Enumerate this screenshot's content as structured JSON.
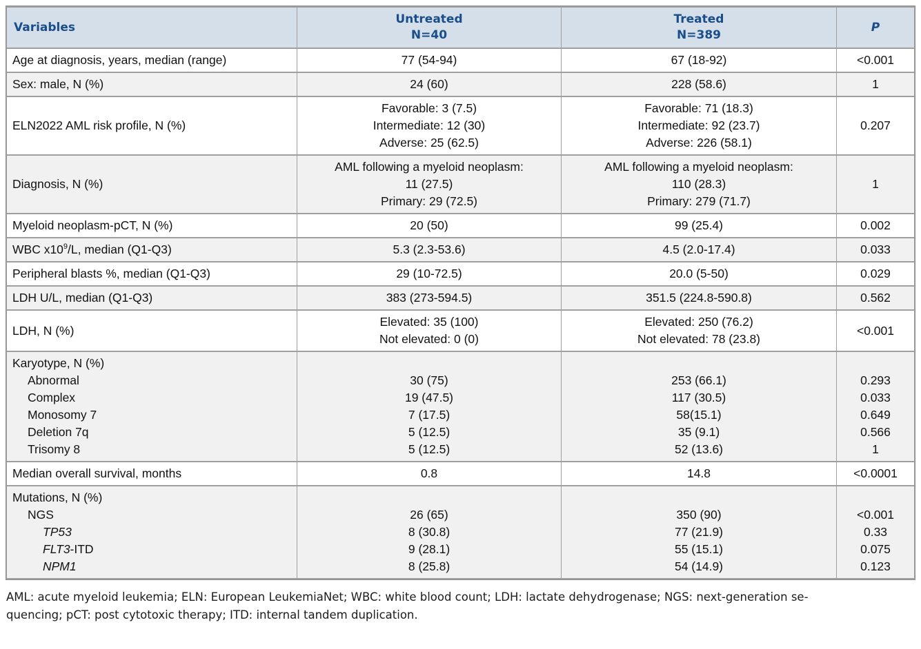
{
  "colors": {
    "header_bg": "#d4dfe9",
    "header_text": "#1a4e8a",
    "row_alt_bg": "#f1f1f1",
    "grid_line": "#9f9f9f"
  },
  "table": {
    "columns": [
      {
        "label": "Variables"
      },
      {
        "label": "Untreated",
        "sublabel": "N=40"
      },
      {
        "label": "Treated",
        "sublabel": "N=389"
      },
      {
        "label": "P"
      }
    ],
    "rows": [
      {
        "variable": [
          "Age at diagnosis, years, median (range)"
        ],
        "untreated": [
          "77 (54-94)"
        ],
        "treated": [
          "67 (18-92)"
        ],
        "p": [
          "<0.001"
        ]
      },
      {
        "variable": [
          "Sex: male, N (%)"
        ],
        "untreated": [
          "24 (60)"
        ],
        "treated": [
          "228 (58.6)"
        ],
        "p": [
          "1"
        ]
      },
      {
        "variable": [
          "ELN2022 AML risk profile, N (%)"
        ],
        "untreated": [
          "Favorable: 3 (7.5)",
          "Intermediate: 12 (30)",
          "Adverse: 25 (62.5)"
        ],
        "treated": [
          "Favorable: 71 (18.3)",
          "Intermediate: 92 (23.7)",
          "Adverse: 226 (58.1)"
        ],
        "p": [
          "0.207"
        ]
      },
      {
        "variable": [
          "Diagnosis, N (%)"
        ],
        "untreated": [
          "AML following a myeloid neoplasm:",
          "11 (27.5)",
          "Primary: 29 (72.5)"
        ],
        "treated": [
          "AML following a myeloid neoplasm:",
          "110 (28.3)",
          "Primary: 279 (71.7)"
        ],
        "p": [
          "1"
        ]
      },
      {
        "variable": [
          "Myeloid neoplasm-pCT, N (%)"
        ],
        "untreated": [
          "20 (50)"
        ],
        "treated": [
          "99 (25.4)"
        ],
        "p": [
          "0.002"
        ]
      },
      {
        "variable": [
          {
            "pre": "WBC x10",
            "sup": "9",
            "post": "/L, median (Q1-Q3)"
          }
        ],
        "untreated": [
          "5.3 (2.3-53.6)"
        ],
        "treated": [
          "4.5 (2.0-17.4)"
        ],
        "p": [
          "0.033"
        ]
      },
      {
        "variable": [
          "Peripheral blasts %, median (Q1-Q3)"
        ],
        "untreated": [
          "29 (10-72.5)"
        ],
        "treated": [
          "20.0 (5-50)"
        ],
        "p": [
          "0.029"
        ]
      },
      {
        "variable": [
          "LDH U/L, median (Q1-Q3)"
        ],
        "untreated": [
          "383 (273-594.5)"
        ],
        "treated": [
          "351.5 (224.8-590.8)"
        ],
        "p": [
          "0.562"
        ]
      },
      {
        "variable": [
          "LDH, N (%)"
        ],
        "untreated": [
          "Elevated: 35 (100)",
          "Not elevated: 0 (0)"
        ],
        "treated": [
          "Elevated: 250 (76.2)",
          "Not elevated: 78 (23.8)"
        ],
        "p": [
          "<0.001"
        ]
      },
      {
        "variable": [
          "Karyotype, N (%)",
          {
            "text": "Abnormal",
            "indent": 1
          },
          {
            "text": "Complex",
            "indent": 1
          },
          {
            "text": "Monosomy 7",
            "indent": 1
          },
          {
            "text": "Deletion 7q",
            "indent": 1
          },
          {
            "text": "Trisomy 8",
            "indent": 1
          }
        ],
        "untreated": [
          "",
          "30 (75)",
          "19 (47.5)",
          "7 (17.5)",
          "5 (12.5)",
          "5 (12.5)"
        ],
        "treated": [
          "",
          "253 (66.1)",
          "117 (30.5)",
          "58(15.1)",
          "35 (9.1)",
          "52 (13.6)"
        ],
        "p": [
          "",
          "0.293",
          "0.033",
          "0.649",
          "0.566",
          "1"
        ]
      },
      {
        "variable": [
          "Median overall survival, months"
        ],
        "untreated": [
          "0.8"
        ],
        "treated": [
          "14.8"
        ],
        "p": [
          "<0.0001"
        ]
      },
      {
        "variable": [
          "Mutations, N (%)",
          {
            "text": "NGS",
            "indent": 1
          },
          {
            "em": "TP53",
            "indent": 2
          },
          {
            "em": "FLT3",
            "text": "-ITD",
            "indent": 2
          },
          {
            "em": "NPM1",
            "indent": 2
          }
        ],
        "untreated": [
          "",
          "26 (65)",
          "8 (30.8)",
          "9 (28.1)",
          "8 (25.8)"
        ],
        "treated": [
          "",
          "350 (90)",
          "77 (21.9)",
          "55 (15.1)",
          "54 (14.9)"
        ],
        "p": [
          "",
          "<0.001",
          "0.33",
          "0.075",
          "0.123"
        ]
      }
    ]
  },
  "footnote": {
    "lines": [
      "AML: acute myeloid leukemia; ELN: European LeukemiaNet; WBC: white blood count; LDH: lactate dehydrogenase; NGS: next-generation se-",
      "quencing; pCT: post cytotoxic therapy; ITD: internal tandem duplication."
    ]
  }
}
